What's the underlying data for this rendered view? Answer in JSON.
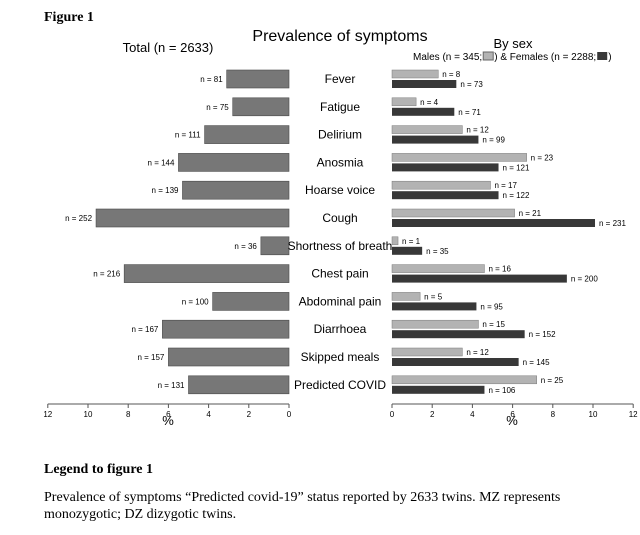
{
  "figure_label": "Figure 1",
  "legend_heading": "Legend to figure 1",
  "caption": "Prevalence of symptoms “Predicted covid-19” status reported by 2633 twins. MZ represents monozygotic; DZ dizygotic twins.",
  "colors": {
    "total": "#777777",
    "male": "#b3b3b3",
    "female": "#383838",
    "axis": "#555555"
  },
  "chart_data": {
    "type": "bar",
    "title": "Prevalence of symptoms",
    "categories": [
      "Fever",
      "Fatigue",
      "Delirium",
      "Anosmia",
      "Hoarse voice",
      "Cough",
      "Shortness of breath",
      "Chest pain",
      "Abdominal pain",
      "Diarrhoea",
      "Skipped meals",
      "Predicted COVID"
    ],
    "left_panel": {
      "title": "Total (n = 2633)",
      "xlabel": "%",
      "xlim": [
        12,
        0
      ],
      "ticks": [
        12,
        10,
        8,
        6,
        4,
        2,
        0
      ],
      "series": [
        {
          "values": [
            3.1,
            2.8,
            4.2,
            5.5,
            5.3,
            9.6,
            1.4,
            8.2,
            3.8,
            6.3,
            6.0,
            5.0
          ],
          "labels": [
            "n = 81",
            "n = 75",
            "n = 111",
            "n = 144",
            "n = 139",
            "n = 252",
            "n = 36",
            "n = 216",
            "n = 100",
            "n = 167",
            "n = 157",
            "n = 131"
          ]
        }
      ]
    },
    "right_panel": {
      "title": "By sex",
      "legend_prefix": "Males (n = 345;",
      "legend_mid": ") & Females (n = 2288;",
      "legend_suffix": ")",
      "xlabel": "%",
      "xlim": [
        0,
        12
      ],
      "ticks": [
        0,
        2,
        4,
        6,
        8,
        10,
        12
      ],
      "series": [
        {
          "key": "males",
          "values": [
            2.3,
            1.2,
            3.5,
            6.7,
            4.9,
            6.1,
            0.3,
            4.6,
            1.4,
            4.3,
            3.5,
            7.2
          ],
          "labels": [
            "n = 8",
            "n = 4",
            "n = 12",
            "n = 23",
            "n = 17",
            "n = 21",
            "n = 1",
            "n = 16",
            "n = 5",
            "n = 15",
            "n = 12",
            "n = 25"
          ]
        },
        {
          "key": "females",
          "values": [
            3.2,
            3.1,
            4.3,
            5.3,
            5.3,
            10.1,
            1.5,
            8.7,
            4.2,
            6.6,
            6.3,
            4.6
          ],
          "labels": [
            "n = 73",
            "n = 71",
            "n = 99",
            "n = 121",
            "n = 122",
            "n = 231",
            "n = 35",
            "n = 200",
            "n = 95",
            "n = 152",
            "n = 145",
            "n = 106"
          ]
        }
      ]
    }
  }
}
